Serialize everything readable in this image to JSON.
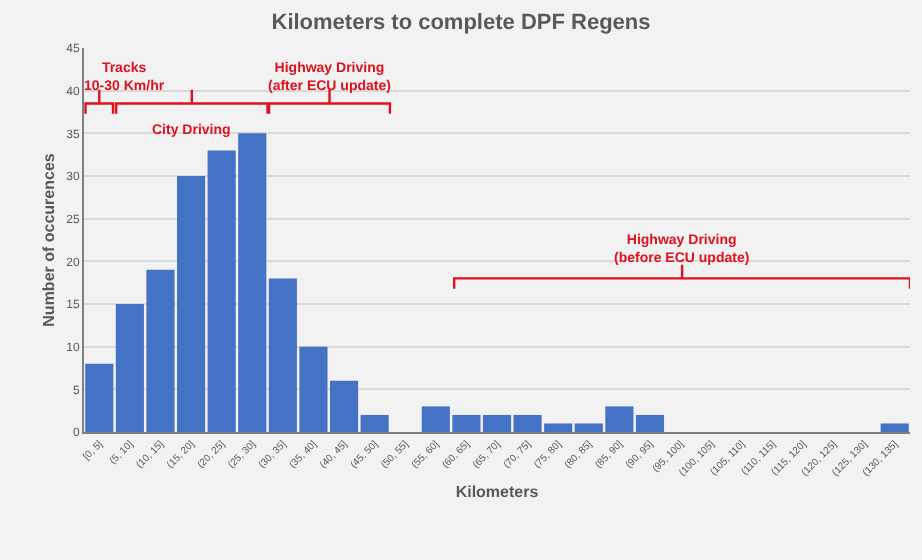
{
  "chart_data": {
    "type": "bar",
    "title": "Kilometers to complete DPF Regens",
    "xlabel": "Kilometers",
    "ylabel": "Number of occurences",
    "categories": [
      "[0, 5]",
      "(5, 10]",
      "(10, 15]",
      "(15, 20]",
      "(20, 25]",
      "(25, 30]",
      "(30, 35]",
      "(35, 40]",
      "(40, 45]",
      "(45, 50]",
      "(50, 55]",
      "(55, 60]",
      "(60, 65]",
      "(65, 70]",
      "(70, 75]",
      "(75, 80]",
      "(80, 85]",
      "(85, 90]",
      "(90, 95]",
      "(95, 100]",
      "(100, 105]",
      "(105, 110]",
      "(110, 115]",
      "(115, 120]",
      "(120, 125]",
      "(125, 130]",
      "(130, 135]"
    ],
    "values": [
      8,
      15,
      19,
      30,
      33,
      35,
      18,
      10,
      6,
      2,
      0,
      3,
      2,
      2,
      2,
      1,
      1,
      3,
      2,
      0,
      0,
      0,
      0,
      0,
      0,
      0,
      1
    ],
    "color": "#4472c4",
    "ylim": [
      0,
      45
    ],
    "yticks": [
      0,
      5,
      10,
      15,
      20,
      25,
      30,
      35,
      40,
      45
    ],
    "grid": "y",
    "legend": false,
    "annotations": [
      "Tracks\n10-30 Km/hr",
      "City Driving",
      "Highway Driving\n(after ECU update)",
      "Highway Driving\n(before ECU update)"
    ]
  }
}
